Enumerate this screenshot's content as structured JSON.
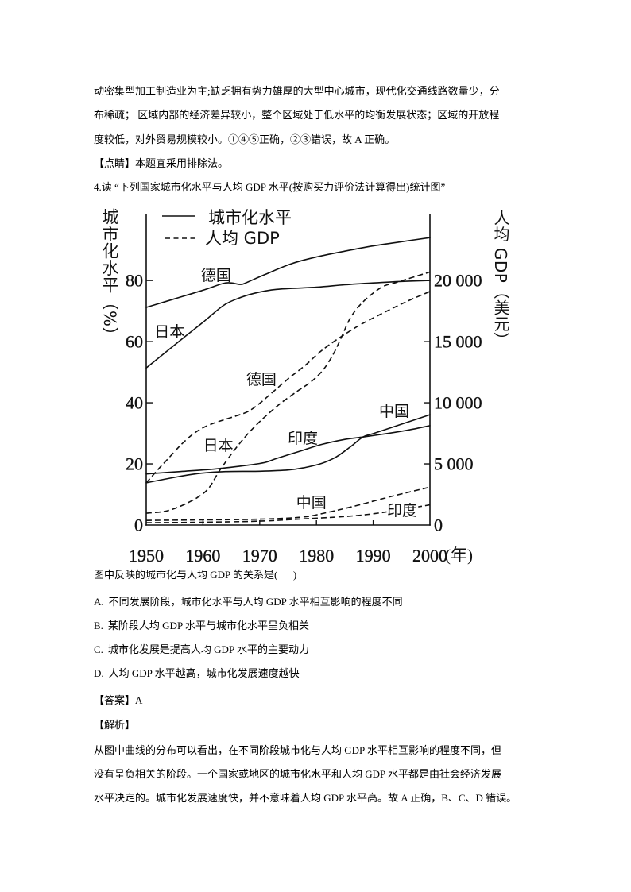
{
  "document": {
    "intro_lines": [
      "动密集型加工制造业为主;缺乏拥有势力雄厚的大型中心城市，现代化交通线路数量少，分",
      "布稀疏； 区域内部的经济差异较小，整个区域处于低水平的均衡发展状态；区域的开放程",
      "度较低，对外贸易规模较小。①④⑤正确，②③错误，故 A 正确。"
    ],
    "tip": {
      "tag": "【点睛】",
      "text": "本题宜采用排除法。"
    },
    "question": {
      "title": "4.读 “下列国家城市化水平与人均 GDP 水平(按购买力评价法计算得出)统计图”",
      "stem": "图中反映的城市化与人均 GDP 的关系是(      )",
      "options": [
        {
          "letter": "A.",
          "text": "不同发展阶段，城市化水平与人均 GDP 水平相互影响的程度不同"
        },
        {
          "letter": "B.",
          "text": "某阶段人均 GDP 水平与城市化水平呈负相关"
        },
        {
          "letter": "C.",
          "text": "城市化发展是提高人均 GDP 水平的主要动力"
        },
        {
          "letter": "D.",
          "text": "人均 GDP 水平越高，城市化发展速度越快"
        }
      ]
    },
    "answer": {
      "tag": "【答案】",
      "value": "A"
    },
    "analysis": {
      "tag": "【解析】",
      "lines": [
        "从图中曲线的分布可以看出，在不同阶段城市化与人均 GDP 水平相互影响的程度不同，但",
        "没有呈负相关的阶段。一个国家或地区的城市化水平和人均 GDP 水平都是由社会经济发展",
        "水平决定的。城市化发展速度快，并不意味着人均 GDP 水平高。故 A 正确，B、C、D 错误。"
      ]
    }
  },
  "chart_data": {
    "type": "line",
    "title": "下列国家城市化水平与人均 GDP 水平(按购买力评价法计算得出)统计图",
    "xlabel": "(年)",
    "ylabel_left": "城市化水平（%）",
    "ylabel_right": "人均 GDP（美元）",
    "xlim": [
      1950,
      2000
    ],
    "x_ticks": [
      1950,
      1960,
      1970,
      1980,
      1990,
      2000
    ],
    "ylim_left": [
      0,
      101.6
    ],
    "y_left_ticks": [
      0,
      20,
      40,
      60,
      80
    ],
    "ylim_right": [
      0,
      25400
    ],
    "y_right_ticks": [
      0,
      5000,
      10000,
      15000,
      20000
    ],
    "y_right_tick_labels": [
      "0",
      "5 000",
      "10 000",
      "15 000",
      "20 000"
    ],
    "grid": false,
    "legend": {
      "position": "top-left",
      "entries": [
        {
          "style": "solid",
          "label": "城市化水平"
        },
        {
          "style": "dashed",
          "label": "人均 GDP"
        }
      ]
    },
    "series": [
      {
        "key": "germany-urbanization",
        "country": "德国",
        "metric": "城市化水平",
        "axis": "left",
        "style": "solid",
        "points": [
          [
            1950,
            71.2
          ],
          [
            1955,
            74.0
          ],
          [
            1960,
            76.8
          ],
          [
            1963.5,
            79.0
          ],
          [
            1965,
            79.2
          ],
          [
            1966.7,
            78.7
          ],
          [
            1968,
            79.6
          ],
          [
            1971,
            82.0
          ],
          [
            1975.6,
            85.5
          ],
          [
            1980,
            87.7
          ],
          [
            1985,
            89.6
          ],
          [
            1990,
            91.3
          ],
          [
            1995,
            92.7
          ],
          [
            2000,
            94.0
          ]
        ]
      },
      {
        "key": "japan-urbanization",
        "country": "日本",
        "metric": "城市化水平",
        "axis": "left",
        "style": "solid",
        "points": [
          [
            1950,
            51.4
          ],
          [
            1953,
            55.9
          ],
          [
            1957,
            61.9
          ],
          [
            1960,
            66.3
          ],
          [
            1963.5,
            71.7
          ],
          [
            1966,
            74.0
          ],
          [
            1969,
            75.8
          ],
          [
            1973,
            77.1
          ],
          [
            1980,
            77.8
          ],
          [
            1985,
            78.6
          ],
          [
            1990,
            79.2
          ],
          [
            1995,
            79.7
          ],
          [
            2000,
            80.0
          ]
        ]
      },
      {
        "key": "china-urbanization",
        "country": "中国",
        "metric": "城市化水平",
        "axis": "left",
        "style": "solid",
        "points": [
          [
            1950,
            13.8
          ],
          [
            1955,
            15.6
          ],
          [
            1959,
            16.8
          ],
          [
            1964,
            17.5
          ],
          [
            1970,
            17.6
          ],
          [
            1975,
            18.0
          ],
          [
            1978,
            18.8
          ],
          [
            1981,
            20.2
          ],
          [
            1983.5,
            22.3
          ],
          [
            1986,
            25.6
          ],
          [
            1988.2,
            28.8
          ],
          [
            1990,
            29.9
          ],
          [
            1995,
            33.0
          ],
          [
            2000,
            36.1
          ]
        ]
      },
      {
        "key": "india-urbanization",
        "country": "印度",
        "metric": "城市化水平",
        "axis": "left",
        "style": "solid",
        "points": [
          [
            1950,
            16.7
          ],
          [
            1956,
            17.5
          ],
          [
            1962.5,
            18.4
          ],
          [
            1968,
            19.6
          ],
          [
            1971,
            20.5
          ],
          [
            1973,
            21.8
          ],
          [
            1977.5,
            24.4
          ],
          [
            1981,
            26.4
          ],
          [
            1985,
            28.0
          ],
          [
            1988.2,
            28.8
          ],
          [
            1992,
            29.8
          ],
          [
            1996,
            31.0
          ],
          [
            2000,
            32.5
          ]
        ]
      },
      {
        "key": "germany-gdp",
        "country": "德国",
        "metric": "人均 GDP",
        "axis": "right",
        "style": "dashed",
        "points": [
          [
            1950,
            3440
          ],
          [
            1952,
            4500
          ],
          [
            1954,
            5500
          ],
          [
            1956,
            6500
          ],
          [
            1958,
            7350
          ],
          [
            1960,
            7950
          ],
          [
            1962,
            8350
          ],
          [
            1964,
            8650
          ],
          [
            1966,
            8950
          ],
          [
            1968,
            9300
          ],
          [
            1970,
            9950
          ],
          [
            1972,
            10750
          ],
          [
            1975,
            11950
          ],
          [
            1978,
            13050
          ],
          [
            1981,
            14300
          ],
          [
            1984.5,
            15450
          ],
          [
            1988,
            16450
          ],
          [
            1992,
            17400
          ],
          [
            1996,
            18300
          ],
          [
            2000,
            19100
          ]
        ]
      },
      {
        "key": "japan-gdp",
        "country": "日本",
        "metric": "人均 GDP",
        "axis": "right",
        "style": "dashed",
        "points": [
          [
            1950,
            970
          ],
          [
            1953,
            1100
          ],
          [
            1955,
            1350
          ],
          [
            1957,
            1750
          ],
          [
            1959,
            2250
          ],
          [
            1961,
            3000
          ],
          [
            1963,
            4500
          ],
          [
            1966,
            6400
          ],
          [
            1969,
            8000
          ],
          [
            1973,
            9700
          ],
          [
            1976.5,
            10900
          ],
          [
            1979,
            11700
          ],
          [
            1981.2,
            12700
          ],
          [
            1983,
            14000
          ],
          [
            1984.5,
            15450
          ],
          [
            1986,
            16950
          ],
          [
            1988.2,
            18250
          ],
          [
            1991.5,
            19450
          ],
          [
            1994.3,
            19870
          ],
          [
            2000,
            20700
          ]
        ]
      },
      {
        "key": "china-gdp",
        "country": "中国",
        "metric": "人均 GDP",
        "axis": "right",
        "style": "dashed",
        "points": [
          [
            1950,
            380
          ],
          [
            1960,
            420
          ],
          [
            1970,
            480
          ],
          [
            1977.5,
            650
          ],
          [
            1982,
            1040
          ],
          [
            1986.8,
            1560
          ],
          [
            1991.5,
            2140
          ],
          [
            1996,
            2660
          ],
          [
            2000,
            3100
          ]
        ]
      },
      {
        "key": "india-gdp",
        "country": "印度",
        "metric": "人均 GDP",
        "axis": "right",
        "style": "dashed",
        "points": [
          [
            1950,
            190
          ],
          [
            1960,
            230
          ],
          [
            1970,
            320
          ],
          [
            1977.5,
            500
          ],
          [
            1984.5,
            680
          ],
          [
            1990,
            920
          ],
          [
            1995,
            1270
          ],
          [
            2000,
            1650
          ]
        ]
      }
    ],
    "annotations": [
      {
        "key": "germany-urbanization",
        "text": "德国",
        "at": [
          1962.3,
          81.8
        ]
      },
      {
        "key": "japan-urbanization",
        "text": "日本",
        "at": [
          1954.1,
          63.4
        ]
      },
      {
        "key": "germany-gdp",
        "text": "德国",
        "at": [
          1970.3,
          47.8
        ]
      },
      {
        "key": "japan-gdp",
        "text": "日本",
        "at": [
          1962.7,
          26.2
        ]
      },
      {
        "key": "india-urbanization",
        "text": "印度",
        "at": [
          1977.6,
          28.6
        ]
      },
      {
        "key": "china-urbanization",
        "text": "中国",
        "at": [
          1993.7,
          37.4
        ]
      },
      {
        "key": "china-gdp",
        "text": "中国",
        "at": [
          1979.1,
          7.5
        ]
      },
      {
        "key": "india-gdp",
        "text": "印度",
        "at": [
          1995.1,
          4.9
        ]
      }
    ]
  }
}
